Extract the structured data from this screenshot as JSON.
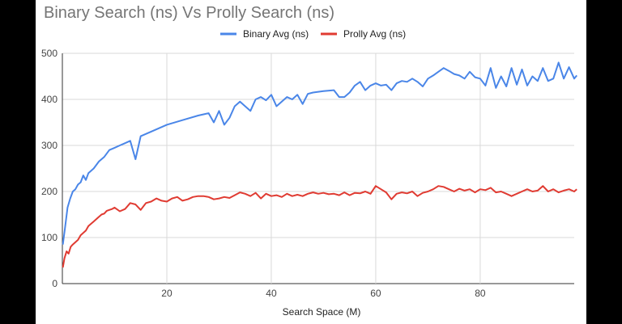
{
  "chart_data": {
    "type": "line",
    "title": "Binary Search (ns) Vs Prolly Search (ns)",
    "xlabel": "Search Space (M)",
    "ylabel": "",
    "xlim": [
      0,
      98
    ],
    "ylim": [
      0,
      500
    ],
    "xticks": [
      20,
      40,
      60,
      80
    ],
    "yticks": [
      0,
      100,
      200,
      300,
      400,
      500
    ],
    "grid": true,
    "legend": "top-center",
    "series": [
      {
        "name": "Binary Avg (ns)",
        "color": "#4a86e8",
        "points": [
          [
            0.1,
            85
          ],
          [
            0.5,
            120
          ],
          [
            1,
            165
          ],
          [
            1.5,
            185
          ],
          [
            2,
            200
          ],
          [
            2.5,
            205
          ],
          [
            3,
            215
          ],
          [
            3.5,
            220
          ],
          [
            4,
            235
          ],
          [
            4.5,
            225
          ],
          [
            5,
            240
          ],
          [
            6,
            250
          ],
          [
            7,
            265
          ],
          [
            8,
            275
          ],
          [
            9,
            290
          ],
          [
            10,
            295
          ],
          [
            11,
            300
          ],
          [
            12,
            305
          ],
          [
            13,
            310
          ],
          [
            14,
            270
          ],
          [
            15,
            320
          ],
          [
            17,
            330
          ],
          [
            20,
            345
          ],
          [
            23,
            355
          ],
          [
            26,
            365
          ],
          [
            28,
            370
          ],
          [
            29,
            350
          ],
          [
            30,
            375
          ],
          [
            31,
            345
          ],
          [
            32,
            360
          ],
          [
            33,
            385
          ],
          [
            34,
            395
          ],
          [
            35,
            385
          ],
          [
            36,
            375
          ],
          [
            37,
            400
          ],
          [
            38,
            405
          ],
          [
            39,
            398
          ],
          [
            40,
            410
          ],
          [
            41,
            385
          ],
          [
            42,
            395
          ],
          [
            43,
            405
          ],
          [
            44,
            400
          ],
          [
            45,
            410
          ],
          [
            46,
            390
          ],
          [
            47,
            412
          ],
          [
            48,
            415
          ],
          [
            50,
            418
          ],
          [
            52,
            420
          ],
          [
            53,
            405
          ],
          [
            54,
            405
          ],
          [
            55,
            415
          ],
          [
            56,
            430
          ],
          [
            57,
            438
          ],
          [
            58,
            420
          ],
          [
            59,
            430
          ],
          [
            60,
            435
          ],
          [
            61,
            430
          ],
          [
            62,
            432
          ],
          [
            63,
            420
          ],
          [
            64,
            435
          ],
          [
            65,
            440
          ],
          [
            66,
            438
          ],
          [
            67,
            445
          ],
          [
            68,
            438
          ],
          [
            69,
            428
          ],
          [
            70,
            445
          ],
          [
            71,
            452
          ],
          [
            72,
            460
          ],
          [
            73,
            468
          ],
          [
            74,
            462
          ],
          [
            75,
            455
          ],
          [
            76,
            452
          ],
          [
            77,
            445
          ],
          [
            78,
            460
          ],
          [
            79,
            448
          ],
          [
            80,
            445
          ],
          [
            81,
            430
          ],
          [
            82,
            468
          ],
          [
            83,
            425
          ],
          [
            84,
            450
          ],
          [
            85,
            428
          ],
          [
            86,
            468
          ],
          [
            87,
            432
          ],
          [
            88,
            465
          ],
          [
            89,
            430
          ],
          [
            90,
            450
          ],
          [
            91,
            440
          ],
          [
            92,
            468
          ],
          [
            93,
            440
          ],
          [
            94,
            445
          ],
          [
            95,
            480
          ],
          [
            96,
            445
          ],
          [
            97,
            470
          ],
          [
            98,
            445
          ],
          [
            98.5,
            452
          ]
        ]
      },
      {
        "name": "Prolly Avg (ns)",
        "color": "#e03b32",
        "points": [
          [
            0.1,
            35
          ],
          [
            0.4,
            55
          ],
          [
            0.8,
            70
          ],
          [
            1.2,
            65
          ],
          [
            1.6,
            80
          ],
          [
            2,
            85
          ],
          [
            2.5,
            90
          ],
          [
            3,
            95
          ],
          [
            3.5,
            105
          ],
          [
            4,
            110
          ],
          [
            4.5,
            115
          ],
          [
            5,
            125
          ],
          [
            5.5,
            130
          ],
          [
            6,
            135
          ],
          [
            6.5,
            140
          ],
          [
            7,
            145
          ],
          [
            7.5,
            150
          ],
          [
            8,
            152
          ],
          [
            8.5,
            158
          ],
          [
            9,
            160
          ],
          [
            9.5,
            162
          ],
          [
            10,
            165
          ],
          [
            11,
            157
          ],
          [
            12,
            162
          ],
          [
            13,
            175
          ],
          [
            14,
            172
          ],
          [
            15,
            160
          ],
          [
            16,
            175
          ],
          [
            17,
            178
          ],
          [
            18,
            185
          ],
          [
            19,
            180
          ],
          [
            20,
            178
          ],
          [
            21,
            185
          ],
          [
            22,
            188
          ],
          [
            23,
            180
          ],
          [
            24,
            183
          ],
          [
            25,
            188
          ],
          [
            26,
            190
          ],
          [
            27,
            190
          ],
          [
            28,
            188
          ],
          [
            29,
            183
          ],
          [
            30,
            185
          ],
          [
            31,
            188
          ],
          [
            32,
            186
          ],
          [
            33,
            192
          ],
          [
            34,
            198
          ],
          [
            35,
            195
          ],
          [
            36,
            190
          ],
          [
            37,
            197
          ],
          [
            38,
            185
          ],
          [
            39,
            195
          ],
          [
            40,
            190
          ],
          [
            41,
            192
          ],
          [
            42,
            188
          ],
          [
            43,
            195
          ],
          [
            44,
            190
          ],
          [
            45,
            193
          ],
          [
            46,
            190
          ],
          [
            47,
            195
          ],
          [
            48,
            198
          ],
          [
            49,
            195
          ],
          [
            50,
            197
          ],
          [
            51,
            194
          ],
          [
            52,
            195
          ],
          [
            53,
            192
          ],
          [
            54,
            198
          ],
          [
            55,
            192
          ],
          [
            56,
            197
          ],
          [
            57,
            196
          ],
          [
            58,
            200
          ],
          [
            59,
            195
          ],
          [
            60,
            212
          ],
          [
            61,
            205
          ],
          [
            62,
            198
          ],
          [
            63,
            183
          ],
          [
            64,
            195
          ],
          [
            65,
            198
          ],
          [
            66,
            196
          ],
          [
            67,
            200
          ],
          [
            68,
            190
          ],
          [
            69,
            197
          ],
          [
            70,
            200
          ],
          [
            71,
            205
          ],
          [
            72,
            212
          ],
          [
            73,
            210
          ],
          [
            74,
            205
          ],
          [
            75,
            200
          ],
          [
            76,
            206
          ],
          [
            77,
            202
          ],
          [
            78,
            205
          ],
          [
            79,
            198
          ],
          [
            80,
            205
          ],
          [
            81,
            203
          ],
          [
            82,
            208
          ],
          [
            83,
            198
          ],
          [
            84,
            200
          ],
          [
            85,
            195
          ],
          [
            86,
            190
          ],
          [
            87,
            195
          ],
          [
            88,
            200
          ],
          [
            89,
            205
          ],
          [
            90,
            200
          ],
          [
            91,
            202
          ],
          [
            92,
            212
          ],
          [
            93,
            200
          ],
          [
            94,
            205
          ],
          [
            95,
            198
          ],
          [
            96,
            202
          ],
          [
            97,
            205
          ],
          [
            98,
            200
          ],
          [
            98.5,
            205
          ]
        ]
      }
    ]
  }
}
